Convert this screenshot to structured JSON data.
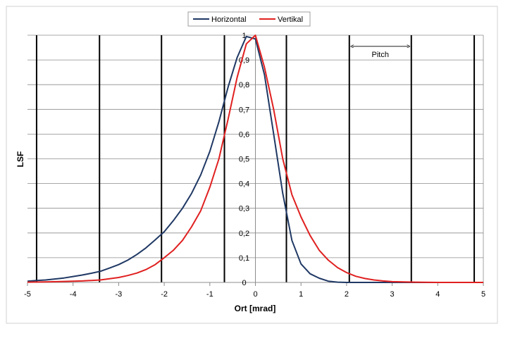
{
  "chart_data": {
    "type": "line",
    "title": "",
    "xlabel": "Ort [mrad]",
    "ylabel": "LSF",
    "xlim": [
      -5,
      5
    ],
    "ylim": [
      0,
      1
    ],
    "x_ticks": [
      "-5",
      "-4",
      "-3",
      "-2",
      "-1",
      "0",
      "1",
      "2",
      "3",
      "4",
      "5"
    ],
    "y_ticks": [
      "0",
      "0,1",
      "0,2",
      "0,3",
      "0,4",
      "0,5",
      "0,6",
      "0,7",
      "0,8",
      "0,9",
      "1"
    ],
    "y_grid": true,
    "legend_position": "top-center",
    "series": [
      {
        "name": "Horizontal",
        "color": "#1f3864",
        "x": [
          -5,
          -4.8,
          -4.6,
          -4.4,
          -4.2,
          -4,
          -3.8,
          -3.6,
          -3.4,
          -3.2,
          -3,
          -2.8,
          -2.6,
          -2.4,
          -2.2,
          -2,
          -1.8,
          -1.6,
          -1.4,
          -1.2,
          -1,
          -0.8,
          -0.6,
          -0.4,
          -0.2,
          0,
          0.2,
          0.4,
          0.6,
          0.8,
          1,
          1.2,
          1.4,
          1.6,
          1.8,
          2,
          2.2,
          2.5,
          3,
          3.5,
          4,
          4.5,
          5
        ],
        "y": [
          0.005,
          0.008,
          0.01,
          0.014,
          0.018,
          0.024,
          0.03,
          0.037,
          0.045,
          0.058,
          0.072,
          0.09,
          0.113,
          0.14,
          0.172,
          0.205,
          0.25,
          0.3,
          0.36,
          0.435,
          0.53,
          0.65,
          0.79,
          0.91,
          0.995,
          0.985,
          0.84,
          0.6,
          0.36,
          0.17,
          0.075,
          0.035,
          0.017,
          0.005,
          0.001,
          0,
          0,
          0,
          0,
          0,
          0,
          0,
          0
        ]
      },
      {
        "name": "Vertikal",
        "color": "#e02020",
        "x": [
          -5,
          -4.6,
          -4.2,
          -3.8,
          -3.4,
          -3.2,
          -3,
          -2.8,
          -2.6,
          -2.4,
          -2.2,
          -2,
          -1.8,
          -1.6,
          -1.4,
          -1.2,
          -1,
          -0.8,
          -0.6,
          -0.4,
          -0.2,
          0,
          0.2,
          0.4,
          0.6,
          0.8,
          1,
          1.2,
          1.4,
          1.6,
          1.8,
          2,
          2.2,
          2.4,
          2.6,
          2.8,
          3,
          3.5,
          4,
          4.5,
          5
        ],
        "y": [
          0.001,
          0.002,
          0.004,
          0.006,
          0.01,
          0.015,
          0.02,
          0.028,
          0.038,
          0.052,
          0.072,
          0.1,
          0.13,
          0.17,
          0.225,
          0.29,
          0.385,
          0.5,
          0.66,
          0.83,
          0.965,
          1,
          0.87,
          0.7,
          0.5,
          0.355,
          0.265,
          0.19,
          0.13,
          0.09,
          0.06,
          0.04,
          0.025,
          0.016,
          0.01,
          0.006,
          0.003,
          0.001,
          0,
          0,
          0
        ]
      }
    ],
    "vertical_lines_x": [
      -4.8,
      -3.42,
      -2.06,
      -0.68,
      0.68,
      2.06,
      3.42,
      4.8
    ],
    "annotation": {
      "text": "Pitch",
      "from_x": 2.06,
      "to_x": 3.42,
      "y": 0.955
    }
  }
}
